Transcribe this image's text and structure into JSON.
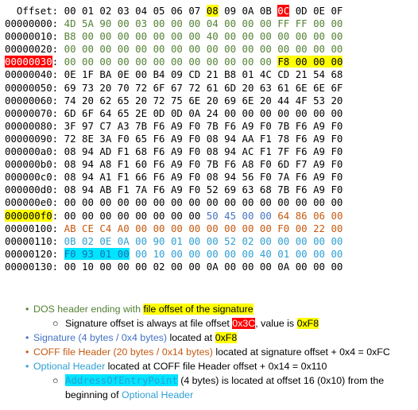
{
  "hexdump": {
    "header_label": "Offset:",
    "header_bytes": [
      "00",
      "01",
      "02",
      "03",
      "04",
      "05",
      "06",
      "07",
      "08",
      "09",
      "0A",
      "0B",
      "0C",
      "0D",
      "0E",
      "0F"
    ],
    "rows": [
      {
        "off": "00000000:",
        "bytes": [
          "4D",
          "5A",
          "90",
          "00",
          "03",
          "00",
          "00",
          "00",
          "04",
          "00",
          "00",
          "00",
          "FF",
          "FF",
          "00",
          "00"
        ]
      },
      {
        "off": "00000010:",
        "bytes": [
          "B8",
          "00",
          "00",
          "00",
          "00",
          "00",
          "00",
          "00",
          "40",
          "00",
          "00",
          "00",
          "00",
          "00",
          "00",
          "00"
        ]
      },
      {
        "off": "00000020:",
        "bytes": [
          "00",
          "00",
          "00",
          "00",
          "00",
          "00",
          "00",
          "00",
          "00",
          "00",
          "00",
          "00",
          "00",
          "00",
          "00",
          "00"
        ]
      },
      {
        "off": "00000030",
        "bytes": [
          "00",
          "00",
          "00",
          "00",
          "00",
          "00",
          "00",
          "00",
          "00",
          "00",
          "00",
          "00",
          "F8",
          "00",
          "00",
          "00"
        ]
      },
      {
        "off": "00000040:",
        "bytes": [
          "0E",
          "1F",
          "BA",
          "0E",
          "00",
          "B4",
          "09",
          "CD",
          "21",
          "B8",
          "01",
          "4C",
          "CD",
          "21",
          "54",
          "68"
        ]
      },
      {
        "off": "00000050:",
        "bytes": [
          "69",
          "73",
          "20",
          "70",
          "72",
          "6F",
          "67",
          "72",
          "61",
          "6D",
          "20",
          "63",
          "61",
          "6E",
          "6E",
          "6F"
        ]
      },
      {
        "off": "00000060:",
        "bytes": [
          "74",
          "20",
          "62",
          "65",
          "20",
          "72",
          "75",
          "6E",
          "20",
          "69",
          "6E",
          "20",
          "44",
          "4F",
          "53",
          "20"
        ]
      },
      {
        "off": "00000070:",
        "bytes": [
          "6D",
          "6F",
          "64",
          "65",
          "2E",
          "0D",
          "0D",
          "0A",
          "24",
          "00",
          "00",
          "00",
          "00",
          "00",
          "00",
          "00"
        ]
      },
      {
        "off": "00000080:",
        "bytes": [
          "3F",
          "97",
          "C7",
          "A3",
          "7B",
          "F6",
          "A9",
          "F0",
          "7B",
          "F6",
          "A9",
          "F0",
          "7B",
          "F6",
          "A9",
          "F0"
        ]
      },
      {
        "off": "00000090:",
        "bytes": [
          "72",
          "8E",
          "3A",
          "F0",
          "65",
          "F6",
          "A9",
          "F0",
          "08",
          "94",
          "AA",
          "F1",
          "78",
          "F6",
          "A9",
          "F0"
        ]
      },
      {
        "off": "000000a0:",
        "bytes": [
          "08",
          "94",
          "AD",
          "F1",
          "68",
          "F6",
          "A9",
          "F0",
          "08",
          "94",
          "AC",
          "F1",
          "7F",
          "F6",
          "A9",
          "F0"
        ]
      },
      {
        "off": "000000b0:",
        "bytes": [
          "08",
          "94",
          "A8",
          "F1",
          "60",
          "F6",
          "A9",
          "F0",
          "7B",
          "F6",
          "A8",
          "F0",
          "6D",
          "F7",
          "A9",
          "F0"
        ]
      },
      {
        "off": "000000c0:",
        "bytes": [
          "08",
          "94",
          "A1",
          "F1",
          "66",
          "F6",
          "A9",
          "F0",
          "08",
          "94",
          "56",
          "F0",
          "7A",
          "F6",
          "A9",
          "F0"
        ]
      },
      {
        "off": "000000d0:",
        "bytes": [
          "08",
          "94",
          "AB",
          "F1",
          "7A",
          "F6",
          "A9",
          "F0",
          "52",
          "69",
          "63",
          "68",
          "7B",
          "F6",
          "A9",
          "F0"
        ]
      },
      {
        "off": "000000e0:",
        "bytes": [
          "00",
          "00",
          "00",
          "00",
          "00",
          "00",
          "00",
          "00",
          "00",
          "00",
          "00",
          "00",
          "00",
          "00",
          "00",
          "00"
        ]
      },
      {
        "off": "000000f0",
        "bytes": [
          "00",
          "00",
          "00",
          "00",
          "00",
          "00",
          "00",
          "00",
          "50",
          "45",
          "00",
          "00",
          "64",
          "86",
          "06",
          "00"
        ]
      },
      {
        "off": "00000100:",
        "bytes": [
          "AB",
          "CE",
          "C4",
          "A0",
          "00",
          "00",
          "00",
          "00",
          "00",
          "00",
          "00",
          "00",
          "F0",
          "00",
          "22",
          "00"
        ]
      },
      {
        "off": "00000110:",
        "bytes": [
          "0B",
          "02",
          "0E",
          "0A",
          "00",
          "90",
          "01",
          "00",
          "00",
          "52",
          "02",
          "00",
          "00",
          "00",
          "00",
          "00"
        ]
      },
      {
        "off": "00000120:",
        "bytes": [
          "F0",
          "93",
          "01",
          "00",
          "00",
          "10",
          "00",
          "00",
          "00",
          "00",
          "00",
          "40",
          "01",
          "00",
          "00",
          "00"
        ]
      },
      {
        "off": "00000130:",
        "bytes": [
          "00",
          "10",
          "00",
          "00",
          "00",
          "02",
          "00",
          "00",
          "0A",
          "00",
          "00",
          "00",
          "0A",
          "00",
          "00",
          "00"
        ]
      }
    ]
  },
  "notes": {
    "n1_text": "DOS header ending with ",
    "n1_hl": "file offset of the signature",
    "n1a_text": "Signature offset is always at file offset ",
    "n1a_hl1": "0x3C",
    "n1a_mid": ", value is ",
    "n1a_hl2": "0xF8",
    "n2_colored": "Signature (4 bytes / 0x4 bytes)",
    "n2_text": " located at ",
    "n2_hl": "0xF8",
    "n3_colored": "COFF file Header (20 bytes / 0x14 bytes)",
    "n3_text": " located at signature offset + 0x4 = 0xFC",
    "n4_colored": "Optional Header",
    "n4_text": " located at COFF file Header offset + 0x14 = 0x110",
    "n4a_hl": "AddressOfEntryPoint",
    "n4a_text": " (4 bytes) is located at offset 16 (0x10) from the",
    "n4a_line2": "beginning of ",
    "n4a_colored": "Optional Header"
  },
  "colors": {
    "dos": "#548235",
    "signature": "#4472c4",
    "coff": "#c55a11",
    "optional": "#2e9fd3",
    "highlight_yellow": "#ffff00",
    "highlight_red": "#ff0000",
    "highlight_cyan": "#00e5ff"
  }
}
